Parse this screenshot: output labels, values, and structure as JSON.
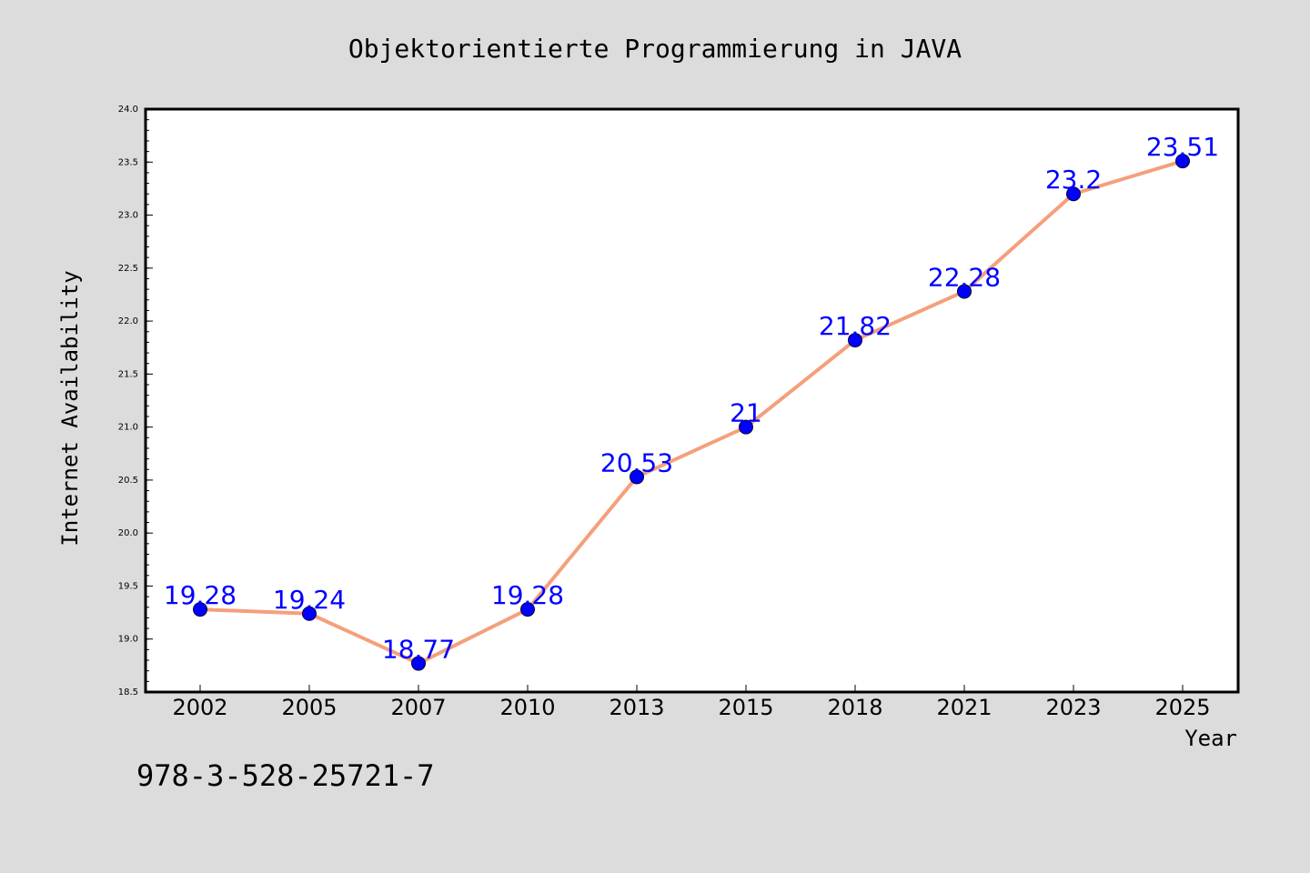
{
  "page": {
    "footer_text": "978-3-528-25721-7"
  },
  "colors": {
    "background": "#dcdcdc",
    "plot_area": "#ffffff",
    "line": "#f4a07c",
    "marker": "#0000ff",
    "data_label": "#0000ff",
    "axis": "#000000"
  },
  "chart_data": {
    "type": "line",
    "title": "Objektorientierte Programmierung in JAVA",
    "xlabel": "Year",
    "ylabel": "Internet Availability",
    "categories": [
      "2002",
      "2005",
      "2007",
      "2010",
      "2013",
      "2015",
      "2018",
      "2021",
      "2023",
      "2025"
    ],
    "series": [
      {
        "values": [
          19.28,
          19.24,
          18.77,
          19.28,
          20.53,
          21,
          21.82,
          22.28,
          23.2,
          23.51
        ],
        "labels": [
          "19.28",
          "19.24",
          "18.77",
          "19.28",
          "20.53",
          "21",
          "21.82",
          "22.28",
          "23.2",
          "23.51"
        ]
      }
    ],
    "ylim": [
      18.5,
      24.0
    ],
    "yticks": [
      "18.5",
      "19.0",
      "19.5",
      "20.0",
      "20.5",
      "21.0",
      "21.5",
      "22.0",
      "22.5",
      "23.0",
      "23.5",
      "24.0"
    ],
    "grid": false,
    "legend": "none",
    "markers": "filled-circle"
  }
}
